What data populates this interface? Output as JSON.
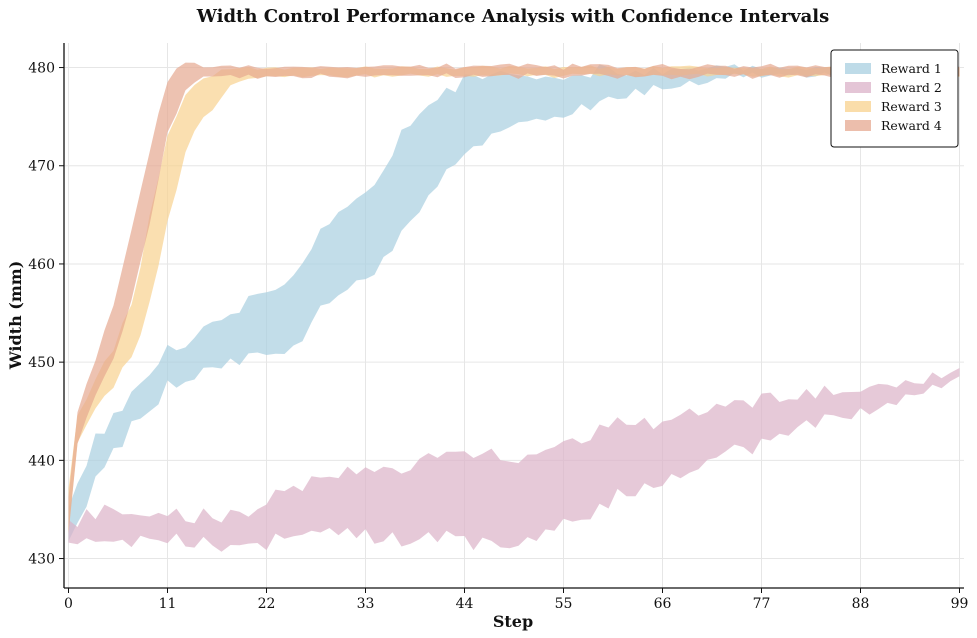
{
  "chart_data": {
    "type": "area",
    "title": "Width Control Performance Analysis with Confidence Intervals",
    "xlabel": "Step",
    "ylabel": "Width (mm)",
    "xlim": [
      -0.5,
      99.5
    ],
    "ylim": [
      427,
      482.5
    ],
    "xticks": [
      0,
      11,
      22,
      33,
      44,
      55,
      66,
      77,
      88,
      99
    ],
    "yticks": [
      430,
      440,
      450,
      460,
      470,
      480
    ],
    "grid": true,
    "legend_position": "top-right",
    "series": [
      {
        "name": "Reward 1",
        "color": "#a8cfe0",
        "kind": "band",
        "anchors": [
          [
            0,
            433.5,
            2.0
          ],
          [
            1,
            435.5,
            2.0
          ],
          [
            3,
            440,
            2.0
          ],
          [
            6,
            444,
            1.8
          ],
          [
            9,
            447,
            1.8
          ],
          [
            11,
            449,
            1.8
          ],
          [
            15,
            451,
            2.2
          ],
          [
            19,
            453,
            2.5
          ],
          [
            22,
            454.5,
            3.0
          ],
          [
            25,
            455,
            3.5
          ],
          [
            28,
            459,
            4.0
          ],
          [
            31,
            462,
            4.2
          ],
          [
            34,
            463.5,
            4.5
          ],
          [
            37,
            468,
            5.0
          ],
          [
            40,
            472,
            4.8
          ],
          [
            44,
            475,
            3.8
          ],
          [
            48,
            476,
            2.8
          ],
          [
            52,
            477,
            2.2
          ],
          [
            56,
            477.5,
            1.8
          ],
          [
            60,
            478,
            1.4
          ],
          [
            64,
            478.5,
            1.0
          ],
          [
            68,
            479,
            0.8
          ],
          [
            72,
            479.5,
            0.5
          ],
          [
            76,
            479.6,
            0.4
          ],
          [
            99,
            479.6,
            0.4
          ]
        ],
        "noise": 1.2
      },
      {
        "name": "Reward 2",
        "color": "#dbb2c8",
        "kind": "band",
        "anchors": [
          [
            0,
            433,
            1.0
          ],
          [
            5,
            433,
            1.5
          ],
          [
            10,
            432.8,
            1.2
          ],
          [
            15,
            433,
            1.5
          ],
          [
            20,
            433,
            1.8
          ],
          [
            25,
            434.8,
            2.5
          ],
          [
            30,
            436,
            2.8
          ],
          [
            35,
            435.5,
            3.5
          ],
          [
            40,
            436,
            4.0
          ],
          [
            45,
            436,
            4.5
          ],
          [
            50,
            436,
            4.5
          ],
          [
            55,
            438,
            4.0
          ],
          [
            60,
            439.5,
            3.8
          ],
          [
            65,
            440.5,
            3.3
          ],
          [
            70,
            442.5,
            2.8
          ],
          [
            75,
            443.5,
            2.4
          ],
          [
            80,
            444.5,
            1.8
          ],
          [
            85,
            445.5,
            1.4
          ],
          [
            90,
            446.5,
            1.0
          ],
          [
            95,
            447.5,
            0.7
          ],
          [
            99,
            448.6,
            0.4
          ]
        ],
        "noise": 1.4
      },
      {
        "name": "Reward 3",
        "color": "#f8d28e",
        "kind": "band",
        "anchors": [
          [
            0,
            435,
            2.0
          ],
          [
            1,
            443,
            1.5
          ],
          [
            3,
            447,
            1.5
          ],
          [
            5,
            449.5,
            1.8
          ],
          [
            7,
            453,
            2.5
          ],
          [
            9,
            460,
            4.5
          ],
          [
            11,
            469,
            4.5
          ],
          [
            13,
            474,
            3.0
          ],
          [
            15,
            477,
            2.0
          ],
          [
            17,
            478.5,
            1.5
          ],
          [
            19,
            479.4,
            0.6
          ],
          [
            22,
            479.6,
            0.4
          ],
          [
            99,
            479.6,
            0.4
          ]
        ],
        "noise": 0.8
      },
      {
        "name": "Reward 4",
        "color": "#e6a890",
        "kind": "band",
        "anchors": [
          [
            0,
            434.5,
            2.0
          ],
          [
            1,
            443.5,
            1.5
          ],
          [
            3,
            448.5,
            2.0
          ],
          [
            5,
            453,
            2.8
          ],
          [
            7,
            460,
            3.5
          ],
          [
            9,
            468,
            3.8
          ],
          [
            11,
            476,
            2.8
          ],
          [
            13,
            479,
            1.3
          ],
          [
            15,
            479.6,
            0.5
          ],
          [
            99,
            479.6,
            0.5
          ]
        ],
        "noise": 0.8
      }
    ]
  }
}
